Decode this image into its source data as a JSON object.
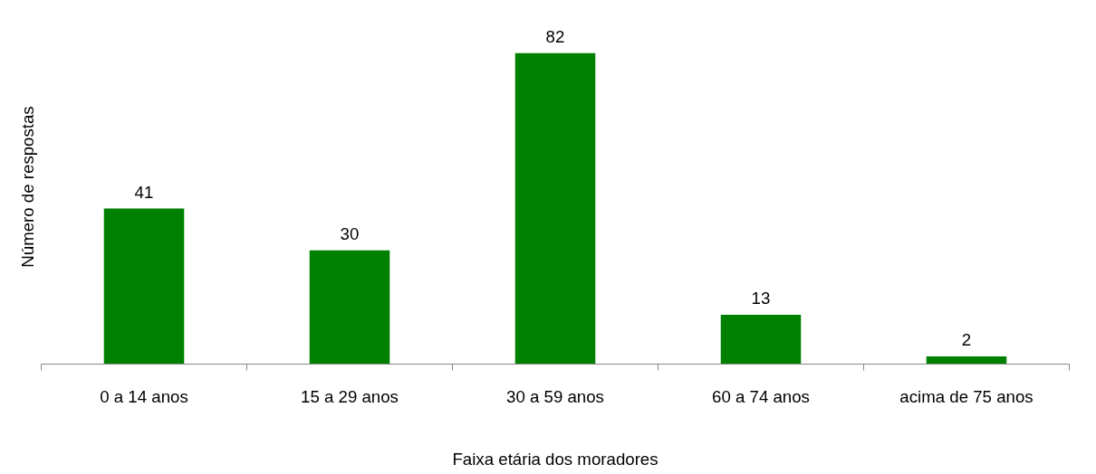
{
  "chart_data": {
    "type": "bar",
    "xlabel": "Faixa etária dos moradores",
    "ylabel": "Número de respostas",
    "categories": [
      "0 a 14 anos",
      "15 a 29 anos",
      "30 a 59 anos",
      "60 a 74 anos",
      "acima de 75 anos"
    ],
    "values": [
      41,
      30,
      82,
      13,
      2
    ],
    "color": "#008000",
    "data_labels": true,
    "grid": false
  }
}
